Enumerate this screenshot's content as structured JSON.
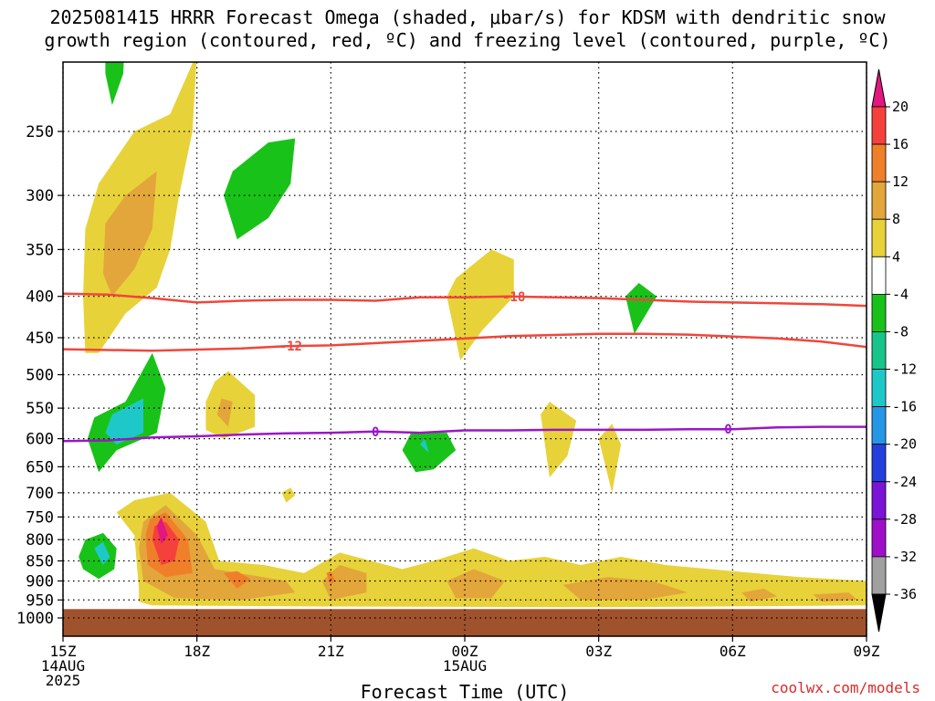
{
  "title_line1": "2025081415 HRRR Forecast Omega (shaded, μbar/s) for KDSM with dendritic snow",
  "title_line2": "growth region (contoured, red, ºC) and freezing level (contoured, purple, ºC)",
  "attribution": "coolwx.com/models",
  "chart_data": {
    "type": "heatmap",
    "title": "2025081415 HRRR Forecast Omega (shaded, μbar/s) for KDSM with dendritic snow growth region (contoured, red, ºC) and freezing level (contoured, purple, ºC)",
    "xlabel": "Forecast Time (UTC)",
    "ylabel": "",
    "y_scale": "log (pressure, hPa, inverted)",
    "x_range_hours": [
      0,
      18
    ],
    "y_range_hpa": [
      200,
      1000
    ],
    "grid": true,
    "x_ticks": [
      {
        "hour": 0,
        "lines": [
          "15Z",
          "14AUG",
          "2025"
        ]
      },
      {
        "hour": 3,
        "lines": [
          "18Z"
        ]
      },
      {
        "hour": 6,
        "lines": [
          "21Z"
        ]
      },
      {
        "hour": 9,
        "lines": [
          "00Z",
          "15AUG"
        ]
      },
      {
        "hour": 12,
        "lines": [
          "03Z"
        ]
      },
      {
        "hour": 15,
        "lines": [
          "06Z"
        ]
      },
      {
        "hour": 18,
        "lines": [
          "09Z"
        ]
      }
    ],
    "y_ticks": [
      250,
      300,
      350,
      400,
      450,
      500,
      550,
      600,
      650,
      700,
      750,
      800,
      850,
      900,
      950,
      1000
    ],
    "colorbar": {
      "ticks": [
        "20",
        "16",
        "12",
        "8",
        "4",
        "-4",
        "-8",
        "-12",
        "-16",
        "-20",
        "-24",
        "-28",
        "-32",
        "-36"
      ],
      "colors": [
        "#e2177f",
        "#f5413c",
        "#f07f2a",
        "#e3a63a",
        "#e8d23a",
        "#ffffff",
        "#19c219",
        "#17c48a",
        "#1fc8c8",
        "#2596e6",
        "#2340de",
        "#7b14d6",
        "#a00fc8",
        "#a0a0a0",
        "#000000"
      ]
    },
    "omega_regions": [
      {
        "value": -6,
        "polygon": [
          [
            1.2,
            180
          ],
          [
            1.4,
            182
          ],
          [
            1.35,
            212
          ],
          [
            1.1,
            232
          ],
          [
            0.95,
            212
          ],
          [
            0.95,
            190
          ]
        ]
      },
      {
        "value": 6,
        "polygon": [
          [
            0.5,
            470
          ],
          [
            0.45,
            400
          ],
          [
            0.5,
            330
          ],
          [
            0.8,
            290
          ],
          [
            1.6,
            250
          ],
          [
            2.4,
            238
          ],
          [
            3.0,
            200
          ],
          [
            2.9,
            250
          ],
          [
            2.6,
            300
          ],
          [
            2.4,
            350
          ],
          [
            2.1,
            390
          ],
          [
            1.4,
            420
          ],
          [
            0.8,
            470
          ]
        ]
      },
      {
        "value": 9,
        "polygon": [
          [
            0.9,
            375
          ],
          [
            0.95,
            325
          ],
          [
            1.4,
            300
          ],
          [
            2.1,
            280
          ],
          [
            2.0,
            330
          ],
          [
            1.6,
            370
          ],
          [
            1.1,
            400
          ]
        ]
      },
      {
        "value": -6,
        "polygon": [
          [
            3.6,
            300
          ],
          [
            3.8,
            280
          ],
          [
            4.6,
            258
          ],
          [
            5.2,
            255
          ],
          [
            5.1,
            290
          ],
          [
            4.6,
            320
          ],
          [
            3.9,
            340
          ]
        ]
      },
      {
        "value": 6,
        "polygon": [
          [
            8.6,
            400
          ],
          [
            8.8,
            380
          ],
          [
            9.6,
            350
          ],
          [
            10.1,
            360
          ],
          [
            10.1,
            400
          ],
          [
            9.4,
            440
          ],
          [
            8.9,
            480
          ]
        ]
      },
      {
        "value": -6,
        "polygon": [
          [
            12.6,
            400
          ],
          [
            12.9,
            385
          ],
          [
            13.3,
            400
          ],
          [
            12.8,
            445
          ]
        ]
      },
      {
        "value": -6,
        "polygon": [
          [
            0.55,
            600
          ],
          [
            0.7,
            565
          ],
          [
            1.4,
            540
          ],
          [
            2.0,
            470
          ],
          [
            2.3,
            520
          ],
          [
            2.1,
            590
          ],
          [
            1.2,
            620
          ],
          [
            0.8,
            660
          ]
        ]
      },
      {
        "value": -12,
        "polygon": [
          [
            0.95,
            590
          ],
          [
            1.1,
            560
          ],
          [
            1.8,
            535
          ],
          [
            1.8,
            590
          ],
          [
            1.2,
            610
          ]
        ]
      },
      {
        "value": 6,
        "polygon": [
          [
            3.2,
            540
          ],
          [
            3.4,
            510
          ],
          [
            3.7,
            495
          ],
          [
            4.3,
            530
          ],
          [
            4.3,
            580
          ],
          [
            3.6,
            600
          ],
          [
            3.2,
            585
          ]
        ]
      },
      {
        "value": 9,
        "polygon": [
          [
            3.45,
            560
          ],
          [
            3.55,
            535
          ],
          [
            3.8,
            540
          ],
          [
            3.7,
            580
          ]
        ]
      },
      {
        "value": -6,
        "polygon": [
          [
            7.6,
            620
          ],
          [
            7.8,
            590
          ],
          [
            8.6,
            590
          ],
          [
            8.8,
            620
          ],
          [
            8.3,
            655
          ],
          [
            7.9,
            660
          ]
        ]
      },
      {
        "value": -12,
        "polygon": [
          [
            8.0,
            610
          ],
          [
            8.1,
            600
          ],
          [
            8.2,
            625
          ]
        ]
      },
      {
        "value": 6,
        "polygon": [
          [
            10.7,
            560
          ],
          [
            10.9,
            540
          ],
          [
            11.5,
            570
          ],
          [
            11.3,
            630
          ],
          [
            10.9,
            670
          ]
        ]
      },
      {
        "value": 6,
        "polygon": [
          [
            12.0,
            600
          ],
          [
            12.3,
            575
          ],
          [
            12.5,
            610
          ],
          [
            12.3,
            700
          ]
        ]
      },
      {
        "value": 6,
        "polygon": [
          [
            4.9,
            700
          ],
          [
            5.1,
            690
          ],
          [
            5.2,
            705
          ],
          [
            5.0,
            720
          ]
        ]
      },
      {
        "value": -6,
        "polygon": [
          [
            0.35,
            840
          ],
          [
            0.5,
            800
          ],
          [
            0.9,
            785
          ],
          [
            1.2,
            820
          ],
          [
            1.15,
            870
          ],
          [
            0.8,
            895
          ],
          [
            0.45,
            870
          ]
        ]
      },
      {
        "value": -12,
        "polygon": [
          [
            0.7,
            820
          ],
          [
            0.9,
            805
          ],
          [
            1.05,
            840
          ],
          [
            0.9,
            860
          ]
        ]
      },
      {
        "value": 6,
        "polygon": [
          [
            1.7,
            920
          ],
          [
            1.6,
            790
          ],
          [
            1.2,
            740
          ],
          [
            1.6,
            715
          ],
          [
            2.4,
            700
          ],
          [
            3.2,
            760
          ],
          [
            3.5,
            850
          ],
          [
            4.5,
            860
          ],
          [
            5.4,
            880
          ],
          [
            6.2,
            830
          ],
          [
            6.9,
            850
          ],
          [
            7.6,
            870
          ],
          [
            8.3,
            850
          ],
          [
            9.2,
            820
          ],
          [
            10.0,
            850
          ],
          [
            10.8,
            840
          ],
          [
            11.6,
            860
          ],
          [
            12.5,
            840
          ],
          [
            13.5,
            860
          ],
          [
            14.5,
            870
          ],
          [
            15.5,
            880
          ],
          [
            16.5,
            890
          ],
          [
            18.0,
            900
          ],
          [
            18.0,
            965
          ],
          [
            12.0,
            970
          ],
          [
            6.0,
            968
          ],
          [
            2.0,
            965
          ],
          [
            1.7,
            955
          ]
        ]
      },
      {
        "value": 9,
        "polygon": [
          [
            1.8,
            900
          ],
          [
            1.7,
            820
          ],
          [
            1.8,
            760
          ],
          [
            2.3,
            725
          ],
          [
            3.0,
            790
          ],
          [
            3.4,
            870
          ],
          [
            5.0,
            900
          ],
          [
            5.2,
            930
          ],
          [
            4.0,
            950
          ],
          [
            2.5,
            945
          ]
        ]
      },
      {
        "value": 9,
        "polygon": [
          [
            5.8,
            900
          ],
          [
            6.2,
            860
          ],
          [
            6.8,
            880
          ],
          [
            6.8,
            930
          ],
          [
            6.0,
            950
          ]
        ]
      },
      {
        "value": 9,
        "polygon": [
          [
            8.6,
            900
          ],
          [
            9.2,
            870
          ],
          [
            9.9,
            900
          ],
          [
            9.6,
            945
          ],
          [
            8.8,
            945
          ]
        ]
      },
      {
        "value": 9,
        "polygon": [
          [
            11.2,
            910
          ],
          [
            12.2,
            890
          ],
          [
            13.2,
            900
          ],
          [
            14.0,
            930
          ],
          [
            13.0,
            950
          ],
          [
            11.6,
            950
          ]
        ]
      },
      {
        "value": 9,
        "polygon": [
          [
            15.2,
            930
          ],
          [
            15.7,
            920
          ],
          [
            16.0,
            940
          ],
          [
            15.4,
            955
          ]
        ]
      },
      {
        "value": 9,
        "polygon": [
          [
            16.8,
            935
          ],
          [
            17.6,
            930
          ],
          [
            17.8,
            950
          ],
          [
            17.0,
            955
          ]
        ]
      },
      {
        "value": 14,
        "polygon": [
          [
            1.9,
            860
          ],
          [
            1.85,
            790
          ],
          [
            1.95,
            755
          ],
          [
            2.3,
            740
          ],
          [
            2.8,
            800
          ],
          [
            2.9,
            880
          ],
          [
            2.3,
            890
          ]
        ]
      },
      {
        "value": 14,
        "polygon": [
          [
            3.6,
            880
          ],
          [
            3.9,
            875
          ],
          [
            4.2,
            895
          ],
          [
            3.9,
            920
          ]
        ]
      },
      {
        "value": 14,
        "polygon": [
          [
            5.9,
            880
          ],
          [
            6.0,
            875
          ],
          [
            6.1,
            900
          ],
          [
            6.0,
            910
          ]
        ]
      },
      {
        "value": 18,
        "polygon": [
          [
            2.0,
            800
          ],
          [
            2.05,
            770
          ],
          [
            2.3,
            760
          ],
          [
            2.6,
            800
          ],
          [
            2.5,
            850
          ],
          [
            2.2,
            860
          ]
        ]
      },
      {
        "value": 22,
        "polygon": [
          [
            2.1,
            770
          ],
          [
            2.2,
            750
          ],
          [
            2.35,
            790
          ],
          [
            2.2,
            810
          ]
        ]
      }
    ],
    "temperature_contours": [
      {
        "label": "-18",
        "color": "#f0463c",
        "points": [
          [
            0,
            397
          ],
          [
            1,
            398
          ],
          [
            2,
            402
          ],
          [
            3,
            407
          ],
          [
            4,
            405
          ],
          [
            5,
            404
          ],
          [
            6,
            404
          ],
          [
            7,
            405
          ],
          [
            8,
            401
          ],
          [
            9,
            401
          ],
          [
            10,
            400
          ],
          [
            11,
            401
          ],
          [
            12,
            402
          ],
          [
            13,
            404
          ],
          [
            14,
            406
          ],
          [
            15,
            407
          ],
          [
            16,
            408
          ],
          [
            17,
            409
          ],
          [
            18,
            411
          ]
        ],
        "label_at_hour": 10.1
      },
      {
        "label": "-12",
        "color": "#f0463c",
        "points": [
          [
            0,
            465
          ],
          [
            2,
            467
          ],
          [
            4,
            464
          ],
          [
            5,
            461
          ],
          [
            6,
            460
          ],
          [
            8,
            454
          ],
          [
            10,
            448
          ],
          [
            12,
            445
          ],
          [
            13,
            445
          ],
          [
            14,
            446
          ],
          [
            16,
            451
          ],
          [
            17,
            455
          ],
          [
            18,
            462
          ]
        ],
        "label_at_hour": 5.1
      },
      {
        "label": "0",
        "color": "#9a17c6",
        "points": [
          [
            0,
            604
          ],
          [
            1,
            603
          ],
          [
            2,
            598
          ],
          [
            3,
            596
          ],
          [
            4,
            593
          ],
          [
            5,
            591
          ],
          [
            6,
            590
          ],
          [
            7,
            588
          ],
          [
            8,
            590
          ],
          [
            9,
            586
          ],
          [
            10,
            586
          ],
          [
            11,
            585
          ],
          [
            12,
            585
          ],
          [
            13,
            585
          ],
          [
            14,
            584
          ],
          [
            15,
            584
          ],
          [
            16,
            581
          ],
          [
            17,
            580
          ],
          [
            18,
            580
          ]
        ],
        "labels_at_hour": [
          7.0,
          14.9
        ]
      }
    ],
    "ground_level_hpa": 975
  }
}
